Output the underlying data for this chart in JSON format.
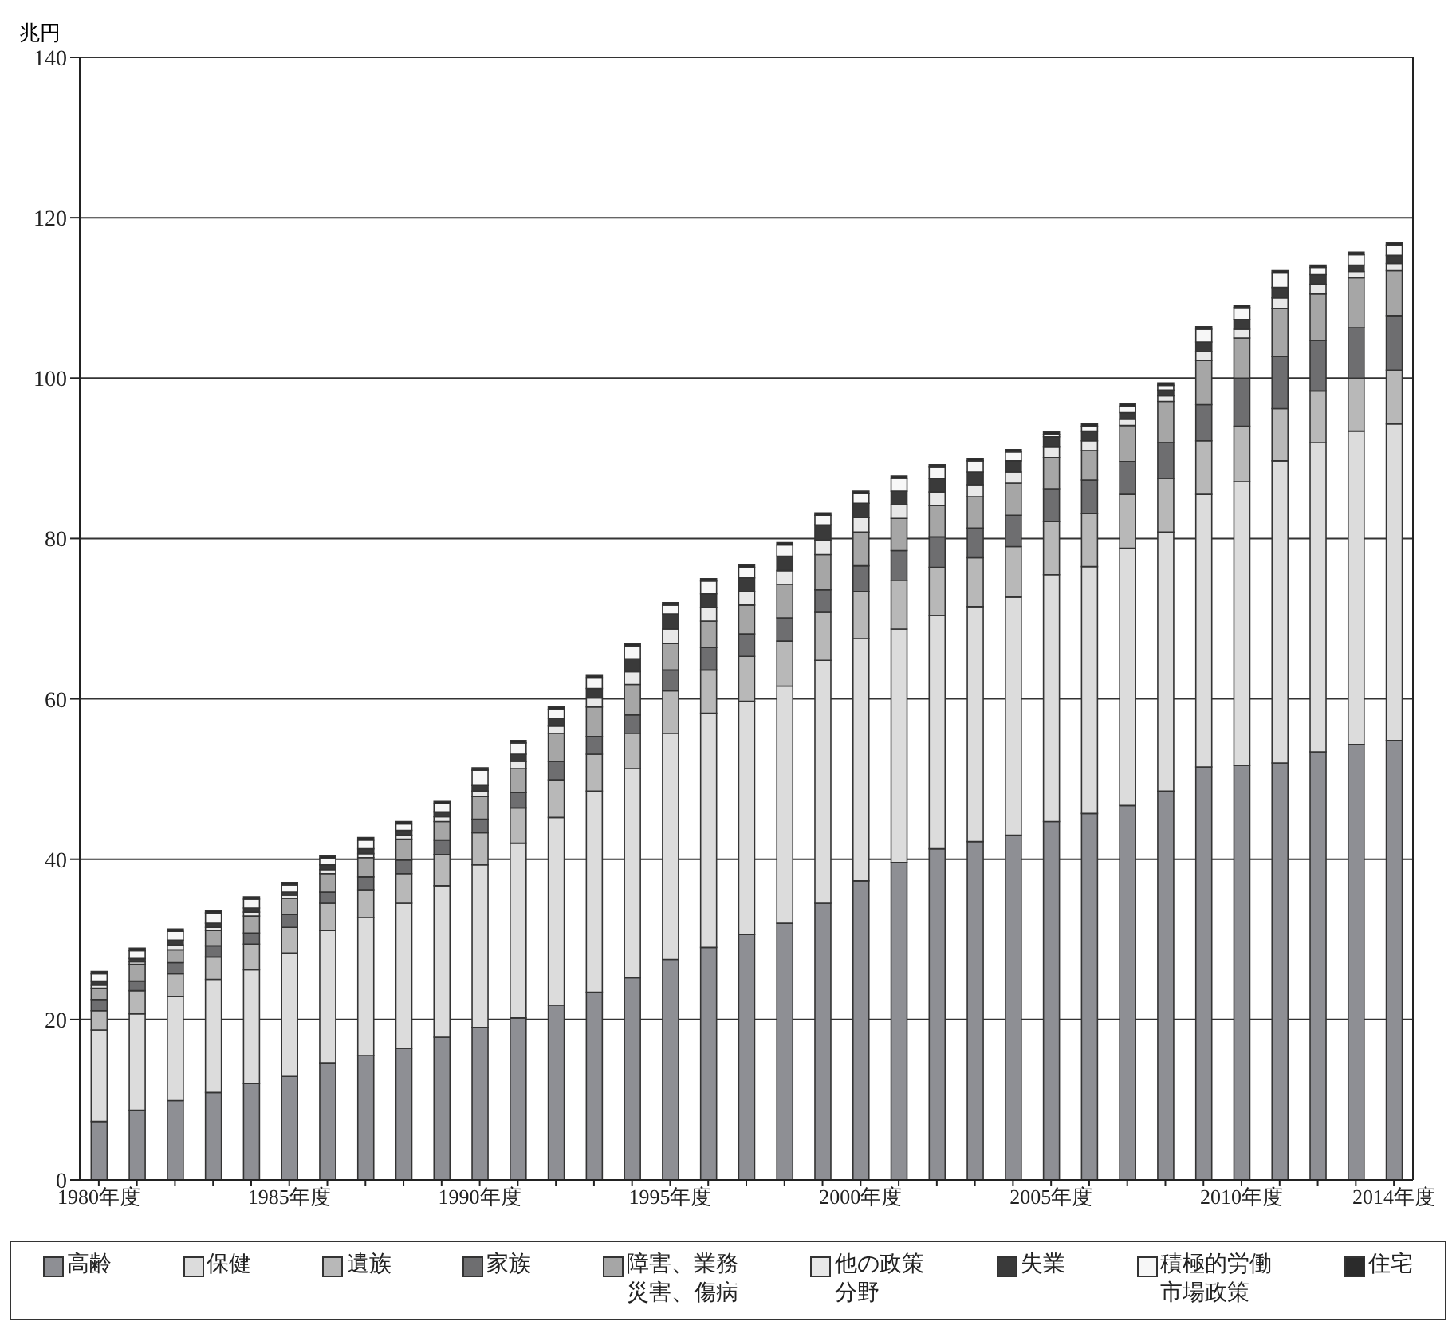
{
  "chart_data": {
    "type": "bar",
    "stacked": true,
    "ylabel": "兆円",
    "categories": [
      "1980年度",
      null,
      null,
      null,
      null,
      "1985年度",
      null,
      null,
      null,
      null,
      "1990年度",
      null,
      null,
      null,
      null,
      "1995年度",
      null,
      null,
      null,
      null,
      "2000年度",
      null,
      null,
      null,
      null,
      "2005年度",
      null,
      null,
      null,
      null,
      "2010年度",
      null,
      null,
      null,
      "2014年度"
    ],
    "ylim": [
      0,
      140
    ],
    "yticks": [
      0,
      20,
      40,
      60,
      80,
      100,
      120,
      140
    ],
    "grid": "y",
    "legend": "bottom",
    "series": [
      {
        "name": "高齢",
        "color": "#8e8f94",
        "values": [
          7.3,
          8.7,
          9.9,
          10.9,
          12.0,
          12.9,
          14.6,
          15.5,
          16.4,
          17.8,
          19.0,
          20.2,
          21.8,
          23.4,
          25.2,
          27.5,
          29.0,
          30.6,
          32.0,
          34.5,
          37.3,
          39.6,
          41.3,
          42.2,
          43.0,
          44.7,
          45.7,
          46.7,
          48.5,
          51.5,
          51.7,
          52.0,
          53.4,
          54.3,
          54.8
        ]
      },
      {
        "name": "保健",
        "color": "#dcdcdc",
        "values": [
          11.4,
          12.0,
          13.0,
          14.1,
          14.2,
          15.4,
          16.5,
          17.2,
          18.1,
          18.9,
          20.3,
          21.8,
          23.4,
          25.1,
          26.1,
          28.2,
          29.2,
          29.1,
          29.6,
          30.3,
          30.2,
          29.1,
          29.1,
          29.3,
          29.7,
          30.8,
          30.8,
          32.1,
          32.3,
          34.0,
          35.4,
          37.7,
          38.6,
          39.1,
          39.5
        ]
      },
      {
        "name": "遺族",
        "color": "#b8b8b8",
        "values": [
          2.4,
          2.9,
          2.8,
          2.8,
          3.2,
          3.2,
          3.4,
          3.5,
          3.7,
          3.9,
          4.0,
          4.4,
          4.7,
          4.6,
          4.4,
          5.3,
          5.4,
          5.6,
          5.6,
          6.0,
          5.9,
          6.1,
          6.0,
          6.1,
          6.3,
          6.6,
          6.6,
          6.7,
          6.7,
          6.7,
          6.9,
          6.5,
          6.4,
          6.6,
          6.7
        ]
      },
      {
        "name": "家族",
        "color": "#6e6e70",
        "values": [
          1.4,
          1.2,
          1.4,
          1.4,
          1.4,
          1.6,
          1.4,
          1.6,
          1.7,
          1.8,
          1.7,
          1.9,
          2.3,
          2.2,
          2.3,
          2.6,
          2.8,
          2.8,
          2.9,
          2.8,
          3.2,
          3.7,
          3.8,
          3.7,
          3.9,
          4.1,
          4.2,
          4.1,
          4.5,
          4.5,
          6.0,
          6.5,
          6.3,
          6.3,
          6.8
        ]
      },
      {
        "name": "障害、業務災害、傷病",
        "color": "#a6a6a6",
        "values": [
          1.4,
          2.1,
          1.6,
          1.9,
          2.1,
          2.0,
          2.3,
          2.4,
          2.6,
          2.3,
          2.8,
          3.0,
          3.5,
          3.7,
          3.8,
          3.3,
          3.3,
          3.6,
          4.2,
          4.4,
          4.2,
          4.0,
          3.9,
          3.9,
          4.0,
          3.9,
          3.7,
          4.5,
          5.1,
          5.5,
          5.0,
          6.0,
          5.8,
          6.2,
          5.6
        ]
      },
      {
        "name": "他の政策分野",
        "color": "#e8e8e8",
        "values": [
          0.4,
          0.3,
          0.6,
          0.4,
          0.5,
          0.4,
          0.5,
          0.5,
          0.5,
          0.6,
          0.7,
          0.9,
          0.9,
          1.1,
          1.6,
          1.8,
          1.7,
          1.7,
          1.7,
          1.8,
          1.8,
          1.7,
          1.7,
          1.5,
          1.4,
          1.3,
          1.2,
          0.8,
          0.7,
          1.1,
          1.1,
          1.3,
          1.2,
          0.8,
          0.9
        ]
      },
      {
        "name": "失業",
        "color": "#3a3a3a",
        "values": [
          0.5,
          0.4,
          0.6,
          0.5,
          0.5,
          0.4,
          0.6,
          0.6,
          0.6,
          0.6,
          0.7,
          0.9,
          1.0,
          1.2,
          1.6,
          1.9,
          1.7,
          1.7,
          1.8,
          1.9,
          1.8,
          1.7,
          1.7,
          1.6,
          1.4,
          1.3,
          1.2,
          0.8,
          0.7,
          1.2,
          1.2,
          1.3,
          1.2,
          0.8,
          1.0
        ]
      },
      {
        "name": "積極的労働市場政策",
        "color": "#f7f7f7",
        "values": [
          0.9,
          1.0,
          1.1,
          1.3,
          1.1,
          0.9,
          0.8,
          1.1,
          0.8,
          1.0,
          1.9,
          1.4,
          1.1,
          1.3,
          1.6,
          1.1,
          1.6,
          1.3,
          1.4,
          1.2,
          1.2,
          1.6,
          1.4,
          1.4,
          1.1,
          0.3,
          0.6,
          0.8,
          0.6,
          1.6,
          1.5,
          1.8,
          0.9,
          1.3,
          1.3
        ]
      },
      {
        "name": "住宅",
        "color": "#2b2b2b",
        "values": [
          0.3,
          0.3,
          0.3,
          0.3,
          0.3,
          0.3,
          0.3,
          0.3,
          0.3,
          0.3,
          0.3,
          0.3,
          0.3,
          0.3,
          0.3,
          0.3,
          0.3,
          0.3,
          0.3,
          0.3,
          0.3,
          0.3,
          0.3,
          0.3,
          0.3,
          0.3,
          0.3,
          0.3,
          0.3,
          0.3,
          0.3,
          0.3,
          0.3,
          0.3,
          0.3
        ]
      }
    ]
  }
}
